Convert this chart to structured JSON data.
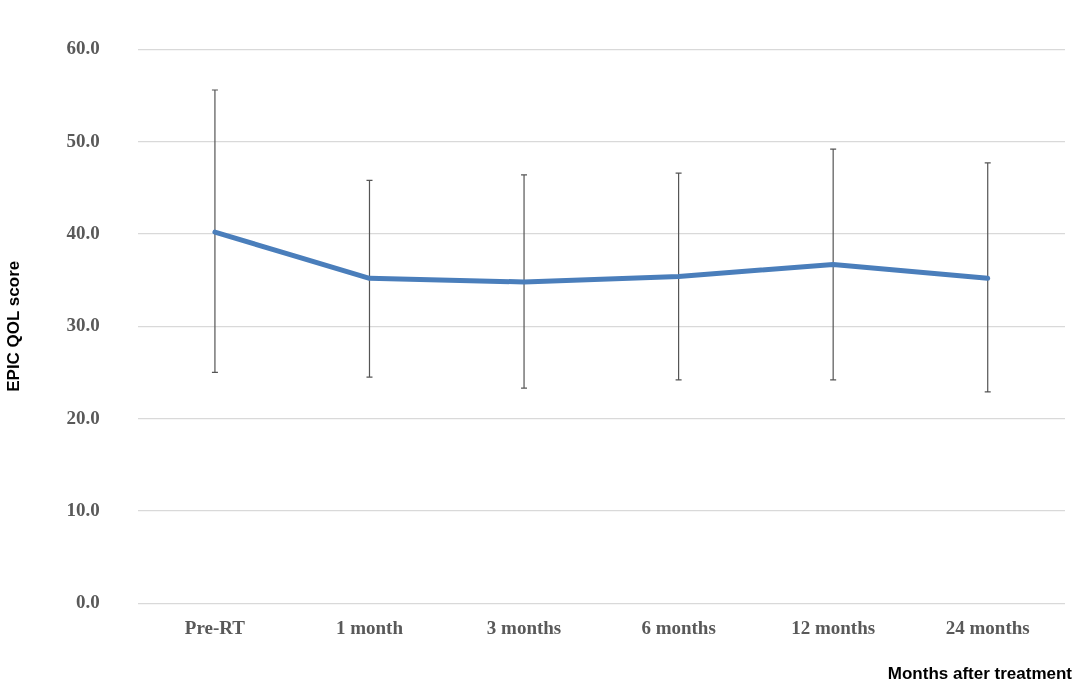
{
  "chart_data": {
    "type": "line",
    "xlabel": "Months after treatment",
    "ylabel": "EPIC QOL score",
    "categories": [
      "Pre-RT",
      "1 month",
      "3 months",
      "6 months",
      "12 months",
      "24 months"
    ],
    "series": [
      {
        "color": "#4a7ebb",
        "values": [
          40.2,
          35.2,
          34.8,
          35.4,
          36.7,
          35.2
        ],
        "errors": [
          [
            25.0,
            55.6
          ],
          [
            24.5,
            45.8
          ],
          [
            23.3,
            46.4
          ],
          [
            24.2,
            46.6
          ],
          [
            24.2,
            49.2
          ],
          [
            22.9,
            47.7
          ]
        ]
      }
    ],
    "ylim": [
      0,
      60
    ],
    "yticks": [
      {
        "value": 0,
        "label": "0.0"
      },
      {
        "value": 10,
        "label": "10.0"
      },
      {
        "value": 20,
        "label": "20.0"
      },
      {
        "value": 30,
        "label": "30.0"
      },
      {
        "value": 40,
        "label": "40.0"
      },
      {
        "value": 50,
        "label": "50.0"
      },
      {
        "value": 60,
        "label": "60.0"
      }
    ],
    "grid": "y",
    "legend": false,
    "marker": "none",
    "line_style": "solid"
  }
}
